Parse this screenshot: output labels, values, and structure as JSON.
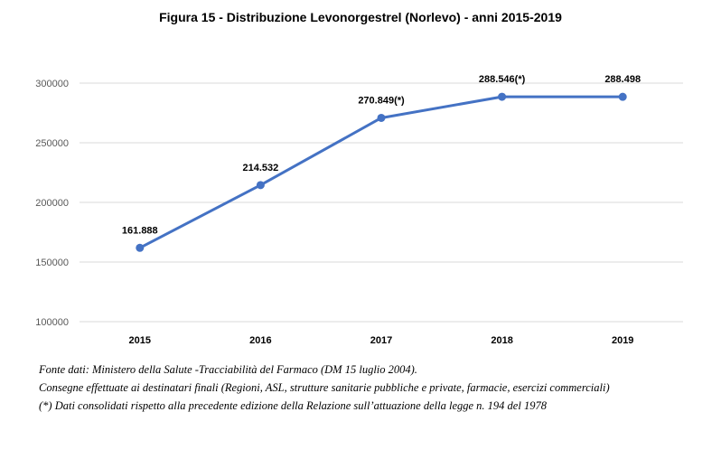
{
  "title": "Figura 15 - Distribuzione Levonorgestrel (Norlevo) - anni 2015-2019",
  "chart_data": {
    "type": "line",
    "categories": [
      "2015",
      "2016",
      "2017",
      "2018",
      "2019"
    ],
    "values": [
      161888,
      214532,
      270849,
      288546,
      288498
    ],
    "data_labels": [
      "161.888",
      "214.532",
      "270.849(*)",
      "288.546(*)",
      "288.498"
    ],
    "ylim": [
      100000,
      300000
    ],
    "yticks": [
      100000,
      150000,
      200000,
      250000,
      300000
    ],
    "ytick_labels": [
      "100000",
      "150000",
      "200000",
      "250000",
      "300000"
    ],
    "grid": true,
    "line_color": "#4472C4",
    "grid_color": "#D9D9D9"
  },
  "notes": {
    "source": "Fonte dati: Ministero della Salute -Tracciabilità del Farmaco (DM 15 luglio 2004).",
    "deliveries": "Consegne effettuate ai destinatari finali (Regioni, ASL, strutture sanitarie pubbliche e private, farmacie, esercizi commerciali)",
    "asterisk": "(*) Dati consolidati rispetto alla precedente edizione della Relazione sull’attuazione della legge n. 194 del 1978"
  }
}
